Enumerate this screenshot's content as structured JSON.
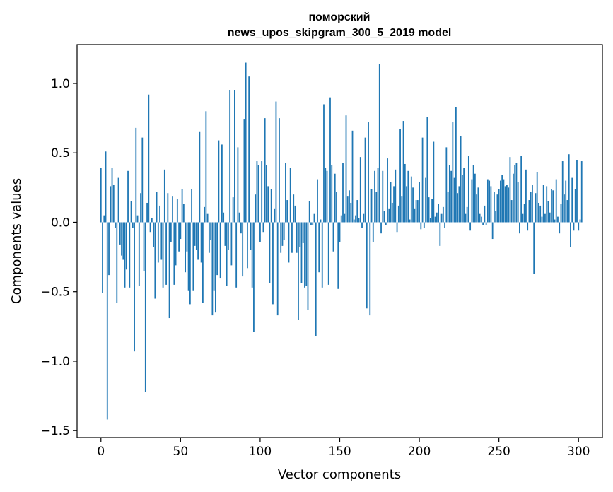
{
  "chart_data": {
    "type": "bar",
    "title_line1": "поморский",
    "title_line2": "news_upos_skipgram_300_5_2019 model",
    "xlabel": "Vector components",
    "ylabel": "Components values",
    "xlim": [
      -15,
      315
    ],
    "ylim": [
      -1.55,
      1.28
    ],
    "xticks": [
      0,
      50,
      100,
      150,
      200,
      250,
      300
    ],
    "yticks": [
      {
        "value": -1.5,
        "label": "−1.5"
      },
      {
        "value": -1.0,
        "label": "−1.0"
      },
      {
        "value": -0.5,
        "label": "−0.5"
      },
      {
        "value": 0.0,
        "label": "0.0"
      },
      {
        "value": 0.5,
        "label": "0.5"
      },
      {
        "value": 1.0,
        "label": "1.0"
      }
    ],
    "bar_color": "#1f77b4",
    "grid": false,
    "values": [
      0.39,
      -0.51,
      0.05,
      0.51,
      -1.42,
      -0.38,
      0.26,
      0.39,
      0.27,
      -0.04,
      -0.58,
      0.32,
      -0.16,
      -0.24,
      -0.27,
      -0.47,
      -0.34,
      0.37,
      -0.47,
      0.15,
      -0.04,
      -0.93,
      0.68,
      0.05,
      -0.46,
      0.21,
      0.61,
      -0.35,
      -1.22,
      0.14,
      0.92,
      -0.07,
      0.03,
      -0.18,
      -0.55,
      0.22,
      -0.29,
      0.12,
      -0.27,
      -0.47,
      0.38,
      -0.45,
      0.21,
      -0.69,
      -0.14,
      0.19,
      -0.45,
      -0.31,
      0.17,
      -0.21,
      -0.12,
      0.24,
      0.13,
      -0.36,
      -0.21,
      -0.49,
      -0.59,
      0.24,
      -0.49,
      -0.17,
      -0.2,
      -0.27,
      0.65,
      -0.29,
      -0.58,
      0.11,
      0.8,
      0.06,
      -0.22,
      -0.13,
      -0.67,
      -0.49,
      -0.65,
      -0.38,
      0.59,
      -0.4,
      0.56,
      0.07,
      -0.17,
      -0.46,
      -0.2,
      0.95,
      -0.31,
      0.18,
      0.95,
      -0.47,
      0.54,
      0.07,
      -0.08,
      -0.39,
      0.74,
      1.15,
      -0.33,
      1.05,
      -0.2,
      -0.47,
      -0.79,
      0.2,
      0.44,
      0.41,
      -0.14,
      0.44,
      -0.07,
      0.75,
      0.41,
      0.26,
      -0.44,
      0.24,
      -0.59,
      0.1,
      0.87,
      -0.67,
      0.75,
      -0.22,
      -0.17,
      -0.13,
      0.43,
      0.16,
      -0.29,
      0.39,
      -0.22,
      0.2,
      0.12,
      -0.22,
      -0.7,
      -0.18,
      -0.44,
      -0.15,
      -0.47,
      -0.46,
      -0.63,
      0.15,
      -0.02,
      -0.02,
      0.06,
      -0.82,
      0.31,
      -0.36,
      0.02,
      -0.47,
      0.85,
      0.39,
      0.37,
      -0.45,
      0.9,
      0.41,
      -0.21,
      0.35,
      0.22,
      -0.48,
      -0.14,
      0.05,
      0.43,
      0.06,
      0.77,
      0.19,
      0.23,
      0.14,
      0.66,
      0.02,
      0.05,
      0.16,
      0.03,
      0.47,
      -0.04,
      0.06,
      0.61,
      -0.62,
      0.72,
      -0.67,
      0.24,
      -0.14,
      0.37,
      0.22,
      0.39,
      1.14,
      -0.08,
      0.37,
      0.08,
      -0.02,
      0.46,
      0.1,
      0.29,
      0.14,
      0.26,
      0.38,
      -0.07,
      0.12,
      0.67,
      0.19,
      0.73,
      0.42,
      0.26,
      0.37,
      0.02,
      0.33,
      0.25,
      0.1,
      0.16,
      0.16,
      0.29,
      -0.05,
      0.61,
      -0.04,
      0.32,
      0.76,
      0.18,
      0.03,
      0.17,
      0.58,
      0.04,
      0.07,
      0.13,
      -0.17,
      0.06,
      0.11,
      -0.04,
      0.54,
      0.22,
      0.41,
      0.37,
      0.72,
      0.32,
      0.83,
      0.21,
      0.26,
      0.62,
      0.34,
      0.39,
      0.06,
      0.11,
      0.48,
      -0.06,
      0.31,
      0.41,
      0.35,
      0.2,
      0.25,
      0.06,
      0.04,
      -0.02,
      0.12,
      -0.02,
      0.31,
      0.3,
      0.26,
      -0.12,
      0.22,
      0.08,
      0.2,
      0.24,
      0.3,
      0.34,
      0.31,
      0.26,
      0.27,
      0.25,
      0.47,
      0.16,
      0.35,
      0.41,
      0.43,
      0.29,
      -0.08,
      0.48,
      0.06,
      0.13,
      0.38,
      -0.06,
      0.16,
      0.22,
      0.27,
      -0.37,
      0.21,
      0.36,
      0.14,
      0.12,
      0.04,
      0.27,
      0.06,
      0.26,
      0.15,
      0.07,
      0.24,
      0.23,
      0.02,
      0.31,
      0.04,
      -0.08,
      0.13,
      0.44,
      0.2,
      0.3,
      0.16,
      0.49,
      -0.18,
      0.32,
      -0.06,
      0.24,
      0.45,
      -0.06,
      0.02,
      0.44
    ]
  }
}
